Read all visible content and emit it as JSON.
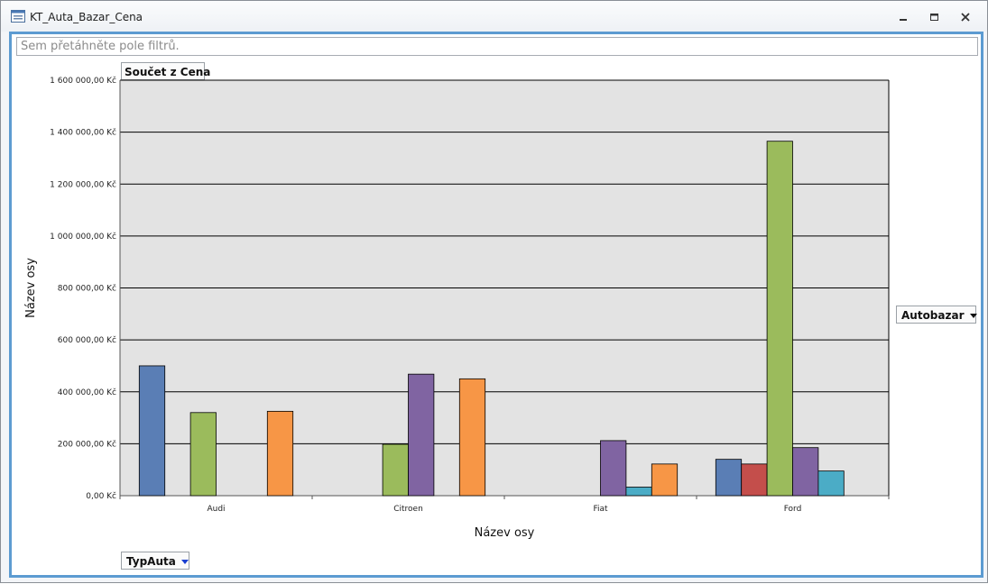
{
  "window": {
    "title": "KT_Auta_Bazar_Cena"
  },
  "filter_zone": {
    "placeholder": "Sem přetáhněte pole filtrů."
  },
  "data_field": {
    "label": "Součet z Cena"
  },
  "series_field": {
    "label": "Autobazar"
  },
  "category_field": {
    "label": "TypAuta"
  },
  "colors": {
    "accent": "#5c9bd1",
    "plot_bg": "#e3e3e3"
  },
  "icons": {
    "app": "form-icon",
    "minimize": "minimize-icon",
    "restore": "restore-icon",
    "close": "close-icon"
  },
  "chart_data": {
    "type": "bar",
    "categories": [
      "Audi",
      "Citroen",
      "Fiat",
      "Ford"
    ],
    "series": [
      {
        "values": [
          500000,
          0,
          0,
          140000
        ],
        "color": "#5a7eb5"
      },
      {
        "values": [
          0,
          0,
          0,
          122000
        ],
        "color": "#c44e4b"
      },
      {
        "values": [
          320000,
          198000,
          0,
          1365000
        ],
        "color": "#9bbb5c"
      },
      {
        "values": [
          0,
          468000,
          212000,
          185000
        ],
        "color": "#8064a2"
      },
      {
        "values": [
          0,
          0,
          33000,
          95000
        ],
        "color": "#4bacc6"
      },
      {
        "values": [
          325000,
          450000,
          122000,
          0
        ],
        "color": "#f79646"
      }
    ],
    "xlabel": "Název osy",
    "ylabel": "Název osy",
    "ylim": [
      0,
      1600000
    ],
    "yticks": [
      0,
      200000,
      400000,
      600000,
      800000,
      1000000,
      1200000,
      1400000,
      1600000
    ],
    "ytick_labels": [
      "0,00 Kč",
      "200 000,00 Kč",
      "400 000,00 Kč",
      "600 000,00 Kč",
      "800 000,00 Kč",
      "1 000 000,00 Kč",
      "1 200 000,00 Kč",
      "1 400 000,00 Kč",
      "1 600 000,00 Kč"
    ],
    "grid": true,
    "legend": "none"
  }
}
